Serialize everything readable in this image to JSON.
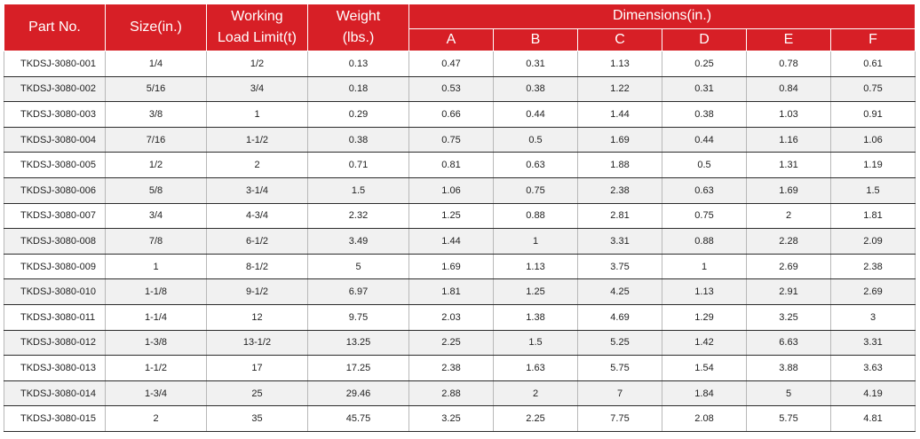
{
  "headers": {
    "part_no": "Part No.",
    "size": "Size(in.)",
    "wll_line1": "Working",
    "wll_line2": "Load Limit(t)",
    "weight_line1": "Weight",
    "weight_line2": "(lbs.)",
    "dimensions": "Dimensions(in.)",
    "dims": [
      "A",
      "B",
      "C",
      "D",
      "E",
      "F"
    ]
  },
  "colors": {
    "header_bg": "#d71f26",
    "row_alt": "#f1f1f1"
  },
  "rows": [
    {
      "part": "TKDSJ-3080-001",
      "size": "1/4",
      "wll": "1/2",
      "weight": "0.13",
      "a": "0.47",
      "b": "0.31",
      "c": "1.13",
      "d": "0.25",
      "e": "0.78",
      "f": "0.61"
    },
    {
      "part": "TKDSJ-3080-002",
      "size": "5/16",
      "wll": "3/4",
      "weight": "0.18",
      "a": "0.53",
      "b": "0.38",
      "c": "1.22",
      "d": "0.31",
      "e": "0.84",
      "f": "0.75"
    },
    {
      "part": "TKDSJ-3080-003",
      "size": "3/8",
      "wll": "1",
      "weight": "0.29",
      "a": "0.66",
      "b": "0.44",
      "c": "1.44",
      "d": "0.38",
      "e": "1.03",
      "f": "0.91"
    },
    {
      "part": "TKDSJ-3080-004",
      "size": "7/16",
      "wll": "1-1/2",
      "weight": "0.38",
      "a": "0.75",
      "b": "0.5",
      "c": "1.69",
      "d": "0.44",
      "e": "1.16",
      "f": "1.06"
    },
    {
      "part": "TKDSJ-3080-005",
      "size": "1/2",
      "wll": "2",
      "weight": "0.71",
      "a": "0.81",
      "b": "0.63",
      "c": "1.88",
      "d": "0.5",
      "e": "1.31",
      "f": "1.19"
    },
    {
      "part": "TKDSJ-3080-006",
      "size": "5/8",
      "wll": "3-1/4",
      "weight": "1.5",
      "a": "1.06",
      "b": "0.75",
      "c": "2.38",
      "d": "0.63",
      "e": "1.69",
      "f": "1.5"
    },
    {
      "part": "TKDSJ-3080-007",
      "size": "3/4",
      "wll": "4-3/4",
      "weight": "2.32",
      "a": "1.25",
      "b": "0.88",
      "c": "2.81",
      "d": "0.75",
      "e": "2",
      "f": "1.81"
    },
    {
      "part": "TKDSJ-3080-008",
      "size": "7/8",
      "wll": "6-1/2",
      "weight": "3.49",
      "a": "1.44",
      "b": "1",
      "c": "3.31",
      "d": "0.88",
      "e": "2.28",
      "f": "2.09"
    },
    {
      "part": "TKDSJ-3080-009",
      "size": "1",
      "wll": "8-1/2",
      "weight": "5",
      "a": "1.69",
      "b": "1.13",
      "c": "3.75",
      "d": "1",
      "e": "2.69",
      "f": "2.38"
    },
    {
      "part": "TKDSJ-3080-010",
      "size": "1-1/8",
      "wll": "9-1/2",
      "weight": "6.97",
      "a": "1.81",
      "b": "1.25",
      "c": "4.25",
      "d": "1.13",
      "e": "2.91",
      "f": "2.69"
    },
    {
      "part": "TKDSJ-3080-011",
      "size": "1-1/4",
      "wll": "12",
      "weight": "9.75",
      "a": "2.03",
      "b": "1.38",
      "c": "4.69",
      "d": "1.29",
      "e": "3.25",
      "f": "3"
    },
    {
      "part": "TKDSJ-3080-012",
      "size": "1-3/8",
      "wll": "13-1/2",
      "weight": "13.25",
      "a": "2.25",
      "b": "1.5",
      "c": "5.25",
      "d": "1.42",
      "e": "6.63",
      "f": "3.31"
    },
    {
      "part": "TKDSJ-3080-013",
      "size": "1-1/2",
      "wll": "17",
      "weight": "17.25",
      "a": "2.38",
      "b": "1.63",
      "c": "5.75",
      "d": "1.54",
      "e": "3.88",
      "f": "3.63"
    },
    {
      "part": "TKDSJ-3080-014",
      "size": "1-3/4",
      "wll": "25",
      "weight": "29.46",
      "a": "2.88",
      "b": "2",
      "c": "7",
      "d": "1.84",
      "e": "5",
      "f": "4.19"
    },
    {
      "part": "TKDSJ-3080-015",
      "size": "2",
      "wll": "35",
      "weight": "45.75",
      "a": "3.25",
      "b": "2.25",
      "c": "7.75",
      "d": "2.08",
      "e": "5.75",
      "f": "4.81"
    }
  ]
}
